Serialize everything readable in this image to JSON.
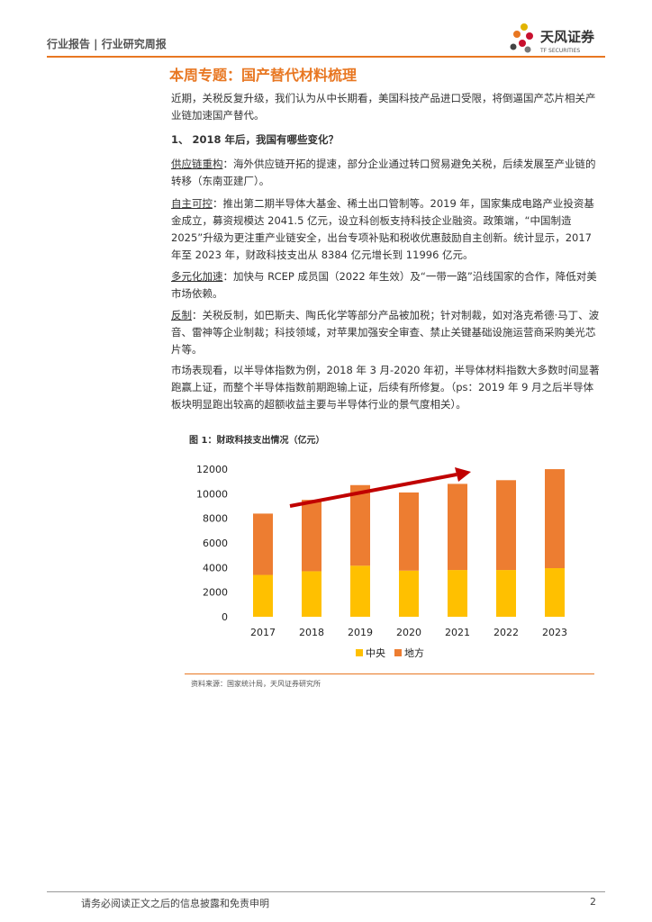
{
  "header": {
    "report_type": "行业报告 | 行业研究周报",
    "logo_name": "天风证券",
    "logo_en": "TF SECURITIES"
  },
  "section_title": "本周专题：国产替代材料梳理",
  "intro": "近期，关税反复升级，我们认为从中长期看，美国科技产品进口受限，将倒逼国产芯片相关产业链加速国产替代。",
  "heading": "1、 2018 年后，我国有哪些变化？",
  "points": [
    {
      "lead": "供应链重构",
      "text": "：海外供应链开拓的提速，部分企业通过转口贸易避免关税，后续发展至产业链的转移（东南亚建厂）。"
    },
    {
      "lead": "自主可控",
      "text": "：推出第二期半导体大基金、稀土出口管制等。2019 年，国家集成电路产业投资基金成立，募资规模达 2041.5 亿元，设立科创板支持科技企业融资。政策端，“中国制造2025”升级为更注重产业链安全，出台专项补贴和税收优惠鼓励自主创新。统计显示，2017 年至 2023 年，财政科技支出从 8384 亿元增长到 11996 亿元。"
    },
    {
      "lead": "多元化加速",
      "text": "：加快与 RCEP 成员国（2022 年生效）及“一带一路”沿线国家的合作，降低对美市场依赖。"
    },
    {
      "lead": "反制",
      "text": "：关税反制，如巴斯夫、陶氏化学等部分产品被加税；针对制裁，如对洛克希德·马丁、波音、雷神等企业制裁；科技领域，对苹果加强安全审查、禁止关键基础设施运营商采购美光芯片等。"
    }
  ],
  "market": "市场表现看，以半导体指数为例，2018 年 3 月-2020 年初，半导体材料指数大多数时间显著跑赢上证，而整个半导体指数前期跑输上证，后续有所修复。（ps：2019 年 9 月之后半导体板块明显跑出较高的超额收益主要与半导体行业的景气度相关）。",
  "chart_data": {
    "type": "bar",
    "stacked": true,
    "title": "图 1：财政科技支出情况（亿元）",
    "categories": [
      "2017",
      "2018",
      "2019",
      "2020",
      "2021",
      "2022",
      "2023"
    ],
    "series": [
      {
        "name": "中央",
        "color": "#FFC000",
        "values": [
          3400,
          3700,
          4150,
          3750,
          3800,
          3800,
          3950
        ]
      },
      {
        "name": "地方",
        "color": "#ED7D31",
        "values": [
          4984,
          5800,
          6550,
          6350,
          7000,
          7300,
          8046
        ]
      }
    ],
    "ylim": [
      0,
      12000
    ],
    "yticks": [
      0,
      2000,
      4000,
      6000,
      8000,
      10000,
      12000
    ],
    "grid": false,
    "legend": "bottom",
    "source": "资料来源：国家统计局，天风证券研究所"
  },
  "footer": {
    "disclaimer": "请务必阅读正文之后的信息披露和免责申明",
    "page": "2"
  }
}
